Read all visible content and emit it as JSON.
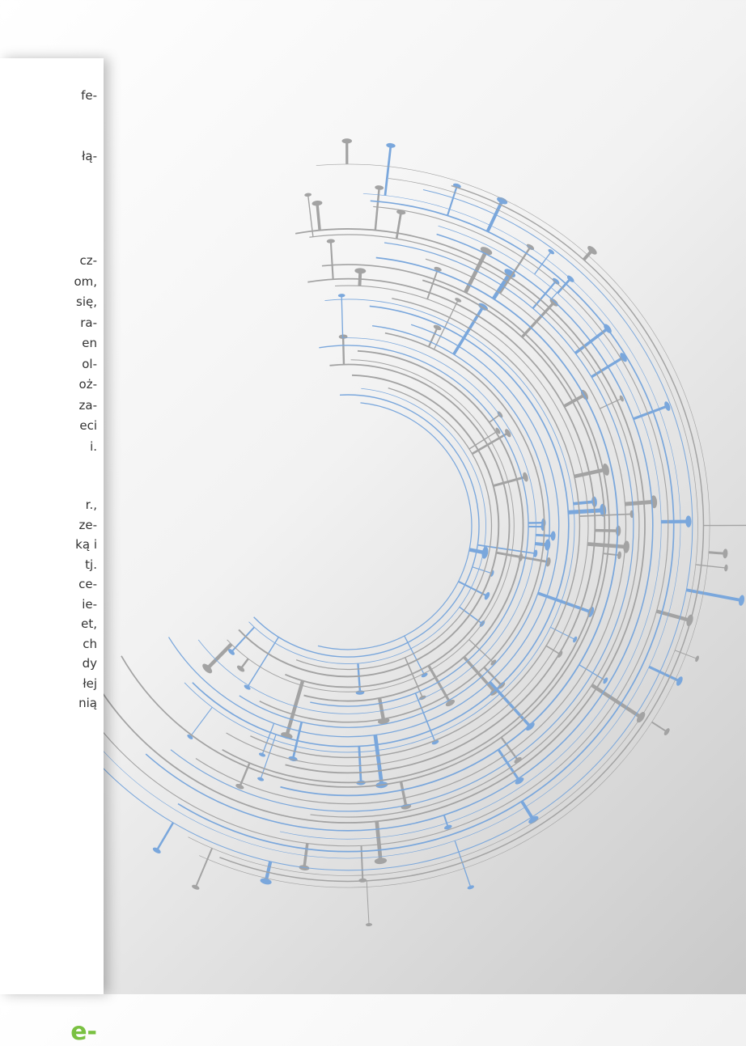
{
  "fragments": {
    "top": [
      "fe-",
      "łą-"
    ],
    "paragraph1": [
      "cz-",
      "om,",
      "się,",
      "ra-",
      "en",
      "ol-",
      "oż-",
      "za-",
      "eci",
      "i."
    ],
    "paragraph2": [
      "r.,",
      "ze-",
      "ką i",
      "tj.",
      "ce-",
      "ie-",
      "et,",
      "ch",
      "dy",
      "łej",
      "nią"
    ],
    "heading": "e-"
  }
}
